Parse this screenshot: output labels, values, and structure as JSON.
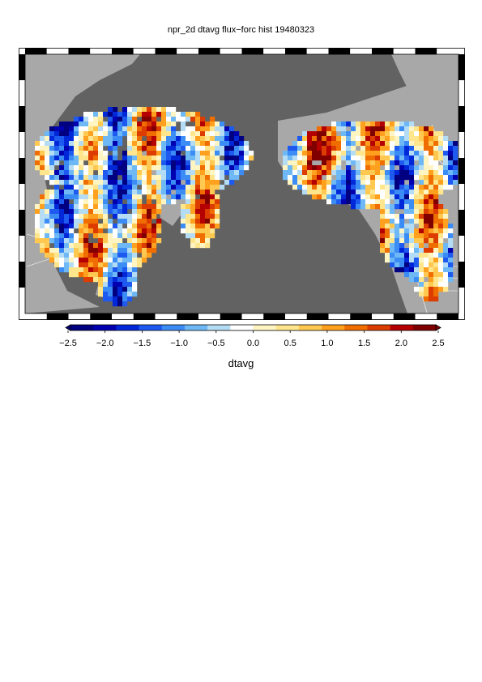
{
  "title": "npr_2d dtavg flux−forc hist 19480323",
  "variable_label": "dtavg",
  "colorbar": {
    "ticks": [
      "−2.5",
      "−2.0",
      "−1.5",
      "−1.0",
      "−0.5",
      "0.0",
      "0.5",
      "1.0",
      "1.5",
      "2.0",
      "2.5"
    ],
    "range": [
      -2.5,
      2.5
    ],
    "colors": [
      "#000080",
      "#0000b0",
      "#0028d8",
      "#1e5af0",
      "#3c8cf5",
      "#6eb9f5",
      "#b4dcf5",
      "#ffffff",
      "#fff5c3",
      "#ffe68c",
      "#ffc850",
      "#ffa01e",
      "#f06e00",
      "#dc3c00",
      "#b40000",
      "#800000"
    ]
  },
  "map": {
    "ocean_color": "#626262",
    "land_color": "#a8a8a8",
    "border_color": "#ffffff"
  }
}
